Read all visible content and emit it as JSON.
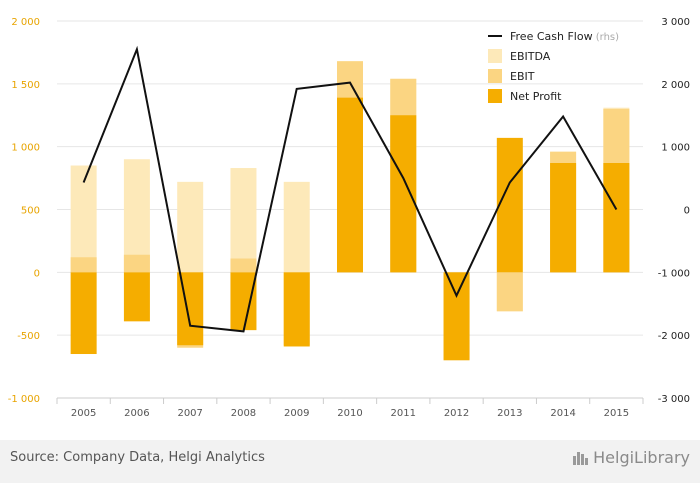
{
  "chart_data": {
    "type": "bar",
    "categories": [
      "2005",
      "2006",
      "2007",
      "2008",
      "2009",
      "2010",
      "2011",
      "2012",
      "2013",
      "2014",
      "2015"
    ],
    "series": [
      {
        "name": "EBITDA",
        "kind": "bar",
        "axis": "left",
        "color": "#fde9b9",
        "values": [
          850,
          900,
          720,
          830,
          720,
          1680,
          1540,
          -400,
          -310,
          960,
          1310
        ]
      },
      {
        "name": "EBIT",
        "kind": "bar",
        "axis": "left",
        "color": "#fbd582",
        "values": [
          120,
          140,
          -600,
          110,
          -580,
          1680,
          1540,
          -690,
          -310,
          960,
          1300
        ]
      },
      {
        "name": "Net Profit",
        "kind": "bar",
        "axis": "left",
        "color": "#f5ad00",
        "values": [
          -650,
          -390,
          -580,
          -460,
          -590,
          1390,
          1250,
          -700,
          1070,
          870,
          870
        ]
      },
      {
        "name": "Free Cash Flow",
        "kind": "line",
        "axis": "right",
        "color": "#111111",
        "values": [
          430,
          2550,
          -1850,
          -1940,
          1920,
          2020,
          500,
          -1370,
          430,
          1480,
          0
        ]
      }
    ],
    "ylim_left": [
      -1000,
      2000
    ],
    "yticks_left": [
      -1000,
      -500,
      0,
      500,
      1000,
      1500,
      2000
    ],
    "ytick_labels_left": [
      "-1 000",
      "-500",
      "0",
      "500",
      "1 000",
      "1 500",
      "2 000"
    ],
    "ylim_right": [
      -3000,
      3000
    ],
    "yticks_right": [
      -3000,
      -2000,
      -1000,
      0,
      1000,
      2000,
      3000
    ],
    "ytick_labels_right": [
      "-3 000",
      "-2 000",
      "-1 000",
      "0",
      "1 000",
      "2 000",
      "3 000"
    ],
    "left_axis_color": "#e8a400",
    "right_axis_color": "#222222",
    "grid": true,
    "legend_position": "top-right",
    "legend": [
      {
        "label": "Free Cash Flow",
        "suffix": "(rhs)",
        "kind": "line",
        "color": "#111111"
      },
      {
        "label": "EBITDA",
        "kind": "bar",
        "color": "#fde9b9"
      },
      {
        "label": "EBIT",
        "kind": "bar",
        "color": "#fbd582"
      },
      {
        "label": "Net Profit",
        "kind": "bar",
        "color": "#f5ad00"
      }
    ]
  },
  "footer": {
    "source": "Source: Company Data, Helgi Analytics",
    "brand": "HelgiLibrary"
  }
}
